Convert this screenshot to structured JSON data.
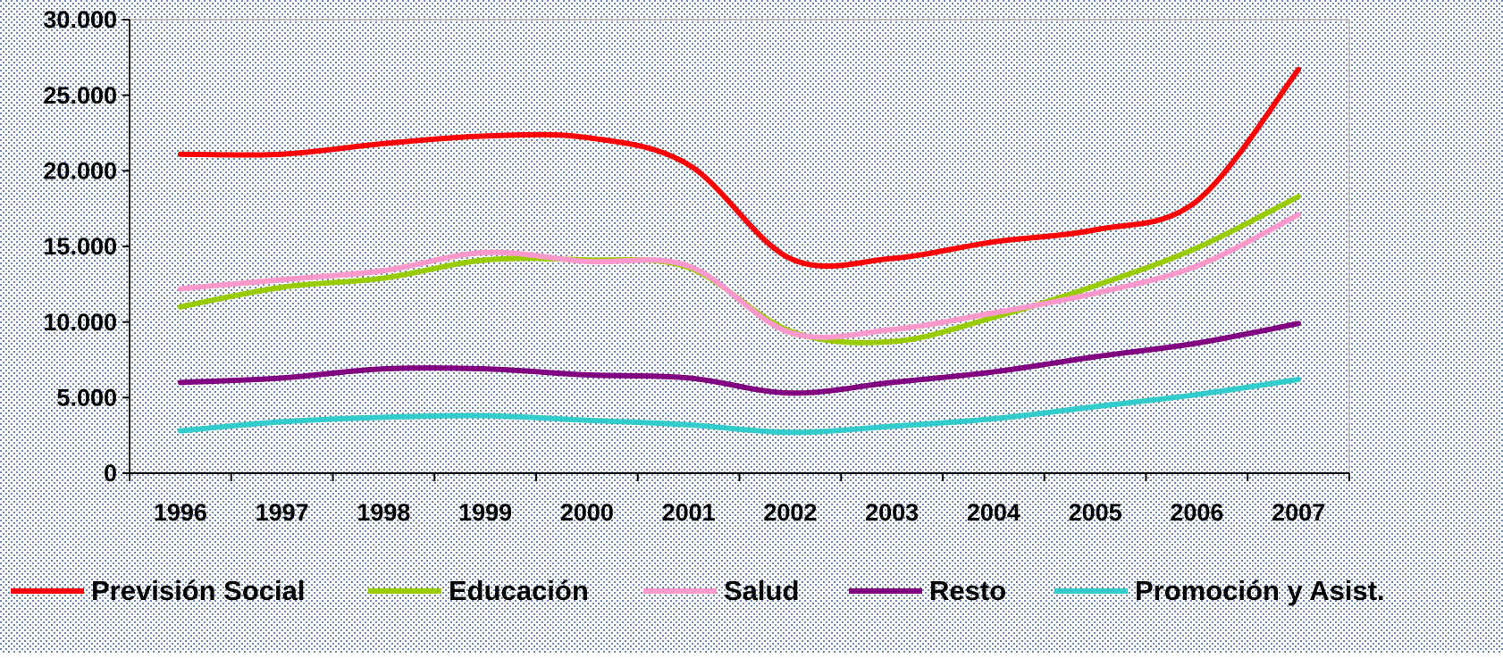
{
  "chart_data": {
    "type": "line",
    "categories": [
      "1996",
      "1997",
      "1998",
      "1999",
      "2000",
      "2001",
      "2002",
      "2003",
      "2004",
      "2005",
      "2006",
      "2007"
    ],
    "series": [
      {
        "name": "Previsión Social",
        "color": "#ff0000",
        "values": [
          21100,
          21100,
          21800,
          22300,
          22200,
          20400,
          14200,
          14200,
          15300,
          16100,
          18000,
          26700
        ]
      },
      {
        "name": "Educación",
        "color": "#99cc00",
        "values": [
          11000,
          12300,
          12900,
          14100,
          14100,
          13600,
          9400,
          8700,
          10300,
          12400,
          14900,
          18300
        ]
      },
      {
        "name": "Salud",
        "color": "#ff99cc",
        "values": [
          12200,
          12800,
          13400,
          14600,
          14000,
          13700,
          9300,
          9500,
          10600,
          11900,
          13700,
          17100
        ]
      },
      {
        "name": "Resto",
        "color": "#800080",
        "values": [
          6000,
          6300,
          6900,
          6900,
          6500,
          6300,
          5300,
          6000,
          6700,
          7700,
          8600,
          9900
        ]
      },
      {
        "name": "Promoción y Asist.",
        "color": "#33cccc",
        "values": [
          2800,
          3400,
          3700,
          3800,
          3500,
          3200,
          2700,
          3100,
          3600,
          4400,
          5200,
          6200
        ]
      }
    ],
    "ylim": [
      0,
      30000
    ],
    "yticks": [
      0,
      {
        "value": 5000,
        "label": "5.000"
      },
      {
        "value": 10000,
        "label": "10.000"
      },
      {
        "value": 15000,
        "label": "15.000"
      },
      {
        "value": 20000,
        "label": "20.000"
      },
      {
        "value": 25000,
        "label": "25.000"
      },
      {
        "value": 30000,
        "label": "30.000"
      }
    ],
    "legend": "bottom"
  }
}
